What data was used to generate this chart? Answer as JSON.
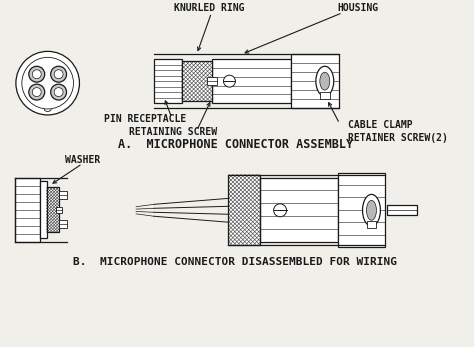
{
  "bg_color": "#f0efea",
  "line_color": "#1a1a1a",
  "title_a": "A.  MICROPHONE CONNECTOR ASSEMBLY",
  "title_b": "B.  MICROPHONE CONNECTOR DISASSEMBLED FOR WIRING",
  "label_knurled": "KNURLED RING",
  "label_housing": "HOUSING",
  "label_pin": "PIN RECEPTACLE",
  "label_retaining": "RETAINING SCREW",
  "label_cable": "CABLE CLAMP",
  "label_retainer": "RETAINER SCREW(2)",
  "label_washer": "WASHER",
  "font_size_label": 7.0,
  "font_size_title": 8.5,
  "fig_w": 4.74,
  "fig_h": 3.47,
  "dpi": 100
}
